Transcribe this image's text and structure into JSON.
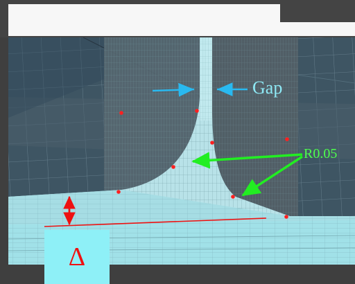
{
  "annotations": {
    "gap_label": "Gap",
    "radius_label": "R0.05",
    "delta_label": "Δ"
  },
  "colors": {
    "mesh_dark": "#3e5563",
    "mesh_light": "#b8e2e8",
    "gap_arrow": "#29b9f0",
    "radius_arrow": "#22ee22",
    "delta_arrow": "#ee1111",
    "node_marker": "#ff2020",
    "delta_box": "#8ef0f7"
  },
  "icons": {
    "gap_arrow": "double-inward-arrow",
    "radius_arrow": "leader-arrow",
    "delta_arrow": "double-headed-vertical-arrow"
  }
}
